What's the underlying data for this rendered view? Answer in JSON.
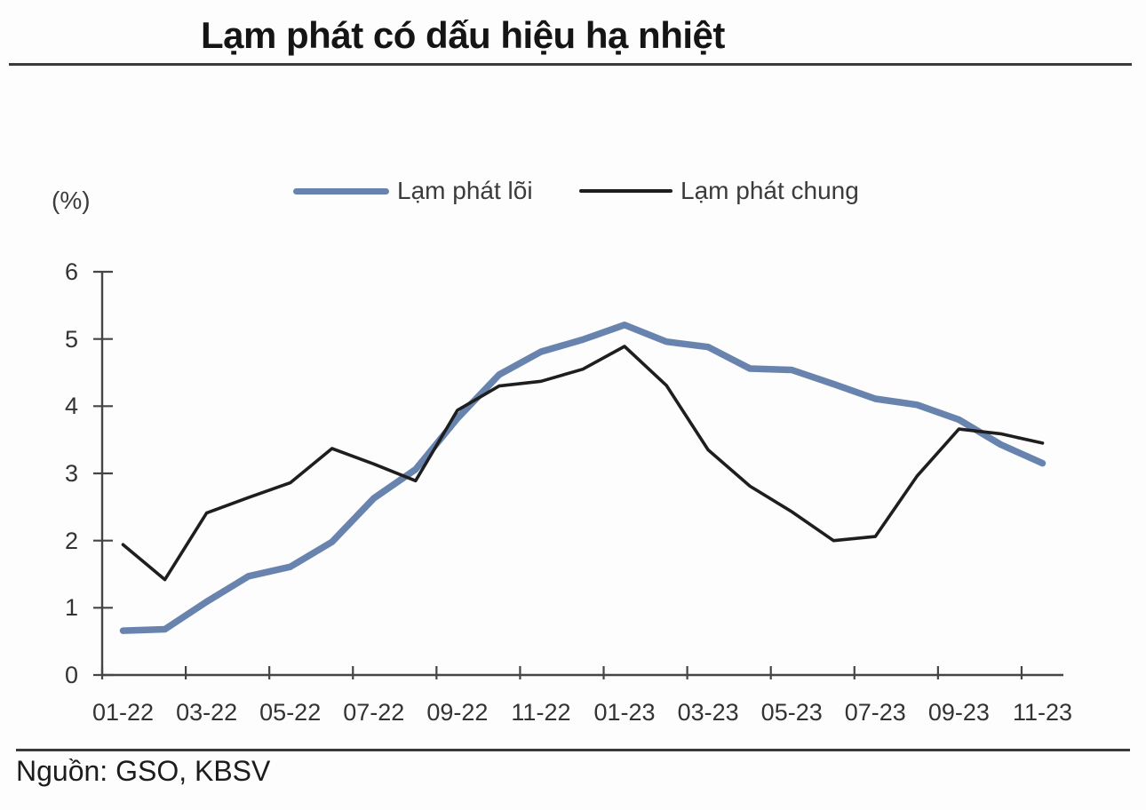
{
  "title": "Lạm phát có dấu hiệu hạ nhiệt",
  "unit_label": "(%)",
  "source_note": "Nguồn: GSO, KBSV",
  "colors": {
    "core_line": "#6884ae",
    "headline_line": "#1e1e1e",
    "axis": "#454545",
    "text": "#333333",
    "separator": "#3a3a3a"
  },
  "legend": {
    "core_label": "Lạm phát lõi",
    "headline_label": "Lạm phát chung"
  },
  "chart_data": {
    "type": "line",
    "title": "Lạm phát có dấu hiệu hạ nhiệt",
    "ylabel": "(%)",
    "xlabel": "",
    "ylim": [
      0,
      6
    ],
    "yticks": [
      0,
      1,
      2,
      3,
      4,
      5,
      6
    ],
    "grid": false,
    "legend_position": "top-center",
    "x": [
      "01-22",
      "02-22",
      "03-22",
      "04-22",
      "05-22",
      "06-22",
      "07-22",
      "08-22",
      "09-22",
      "10-22",
      "11-22",
      "12-22",
      "01-23",
      "02-23",
      "03-23",
      "04-23",
      "05-23",
      "06-23",
      "07-23",
      "08-23",
      "09-23",
      "10-23",
      "11-23"
    ],
    "xtick_labels_shown": [
      "01-22",
      "03-22",
      "05-22",
      "07-22",
      "09-22",
      "11-22",
      "01-23",
      "03-23",
      "05-23",
      "07-23",
      "09-23",
      "11-23"
    ],
    "series": [
      {
        "name": "Lạm phát lõi",
        "color": "#6884ae",
        "stroke_width": 7.5,
        "values": [
          0.66,
          0.68,
          1.09,
          1.47,
          1.61,
          1.98,
          2.63,
          3.06,
          3.82,
          4.47,
          4.81,
          4.99,
          5.21,
          4.96,
          4.88,
          4.56,
          4.54,
          4.33,
          4.11,
          4.02,
          3.8,
          3.43,
          3.15
        ]
      },
      {
        "name": "Lạm phát chung",
        "color": "#1e1e1e",
        "stroke_width": 3.6,
        "values": [
          1.94,
          1.42,
          2.41,
          2.64,
          2.86,
          3.37,
          3.14,
          2.89,
          3.94,
          4.3,
          4.37,
          4.55,
          4.89,
          4.31,
          3.35,
          2.81,
          2.43,
          2.0,
          2.06,
          2.96,
          3.66,
          3.59,
          3.45
        ]
      }
    ]
  }
}
